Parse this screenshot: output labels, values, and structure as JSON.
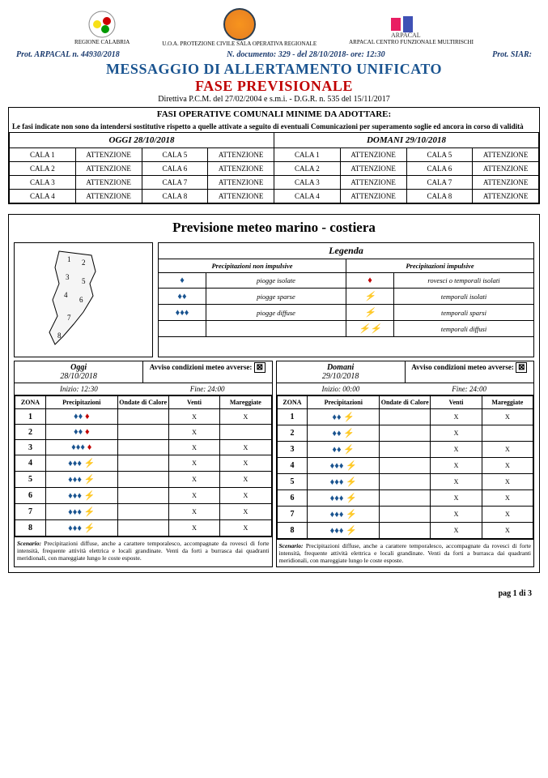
{
  "header": {
    "logos": [
      {
        "name": "REGIONE CALABRIA"
      },
      {
        "name": "U.O.A. PROTEZIONE CIVILE SALA OPERATIVA REGIONALE"
      },
      {
        "name": "ARPACAL CENTRO FUNZIONALE MULTIRISCHI"
      }
    ],
    "prot_left": "Prot. ARPACAL n. 44930/2018",
    "prot_center": "N. documento: 329 - del 28/10/2018- ore: 12:30",
    "prot_right": "Prot. SIAR:",
    "title1": "MESSAGGIO DI ALLERTAMENTO UNIFICATO",
    "title2": "FASE PREVISIONALE",
    "subtitle": "Direttiva P.C.M. del 27/02/2004 e s.m.i. - D.G.R. n. 535 del 15/11/2017"
  },
  "fasi": {
    "header": "FASI OPERATIVE COMUNALI MINIME DA ADOTTARE:",
    "note": "Le fasi indicate non sono da intendersi sostitutive rispetto a quelle attivate a seguito di eventuali Comunicazioni per superamento soglie ed ancora in corso di validità",
    "oggi_label": "OGGI 28/10/2018",
    "domani_label": "DOMANI 29/10/2018",
    "rows": [
      [
        {
          "z": "CALA 1",
          "s": "ATTENZIONE"
        },
        {
          "z": "CALA 5",
          "s": "ATTENZIONE"
        },
        {
          "z": "CALA 1",
          "s": "ATTENZIONE"
        },
        {
          "z": "CALA 5",
          "s": "ATTENZIONE"
        }
      ],
      [
        {
          "z": "CALA 2",
          "s": "ATTENZIONE"
        },
        {
          "z": "CALA 6",
          "s": "ATTENZIONE"
        },
        {
          "z": "CALA 2",
          "s": "ATTENZIONE"
        },
        {
          "z": "CALA 6",
          "s": "ATTENZIONE"
        }
      ],
      [
        {
          "z": "CALA 3",
          "s": "ATTENZIONE"
        },
        {
          "z": "CALA 7",
          "s": "ATTENZIONE"
        },
        {
          "z": "CALA 3",
          "s": "ATTENZIONE"
        },
        {
          "z": "CALA 7",
          "s": "ATTENZIONE"
        }
      ],
      [
        {
          "z": "CALA 4",
          "s": "ATTENZIONE"
        },
        {
          "z": "CALA 8",
          "s": "ATTENZIONE"
        },
        {
          "z": "CALA 4",
          "s": "ATTENZIONE"
        },
        {
          "z": "CALA 8",
          "s": "ATTENZIONE"
        }
      ]
    ]
  },
  "prev": {
    "title": "Previsione meteo marino - costiera",
    "legend": {
      "title": "Legenda",
      "non_imp": "Precipitazioni non impulsive",
      "imp": "Precipitazioni impulsive",
      "rows": [
        {
          "ic1": "💧",
          "tx1": "piogge isolate",
          "ic2": "🔸",
          "tx2": "rovesci o temporali isolati"
        },
        {
          "ic1": "💧💧",
          "tx1": "piogge sparse",
          "ic2": "⚡",
          "tx2": "temporali isolati"
        },
        {
          "ic1": "💧💧💧",
          "tx1": "piogge diffuse",
          "ic2": "⚡",
          "tx2": "temporali sparsi"
        },
        {
          "ic1": "",
          "tx1": "",
          "ic2": "⚡⚡",
          "tx2": "temporali diffusi"
        }
      ]
    },
    "cols": [
      {
        "day": "Oggi",
        "date": "28/10/2018",
        "avviso": "Avviso condizioni meteo avverse:",
        "inizio": "Inizio: 12:30",
        "fine": "Fine: 24:00",
        "zones": [
          {
            "z": "1",
            "p": "💧💧 🔸",
            "oc": "",
            "v": "X",
            "m": "X"
          },
          {
            "z": "2",
            "p": "💧💧 🔸",
            "oc": "",
            "v": "X",
            "m": ""
          },
          {
            "z": "3",
            "p": "💧💧💧 🔸",
            "oc": "",
            "v": "X",
            "m": "X"
          },
          {
            "z": "4",
            "p": "💧💧💧 ⚡",
            "oc": "",
            "v": "X",
            "m": "X"
          },
          {
            "z": "5",
            "p": "💧💧💧 ⚡",
            "oc": "",
            "v": "X",
            "m": "X"
          },
          {
            "z": "6",
            "p": "💧💧💧 ⚡",
            "oc": "",
            "v": "X",
            "m": "X"
          },
          {
            "z": "7",
            "p": "💧💧💧 ⚡",
            "oc": "",
            "v": "X",
            "m": "X"
          },
          {
            "z": "8",
            "p": "💧💧💧 ⚡",
            "oc": "",
            "v": "X",
            "m": "X"
          }
        ],
        "scenario": "Precipitazioni diffuse, anche a carattere temporalesco, accompagnate da rovesci di forte intensità, frequente attività elettrica e locali grandinate. Venti da forti a burrasca dai quadranti meridionali, con mareggiate lungo le coste esposte."
      },
      {
        "day": "Domani",
        "date": "29/10/2018",
        "avviso": "Avviso condizioni meteo avverse:",
        "inizio": "Inizio: 00:00",
        "fine": "Fine: 24:00",
        "zones": [
          {
            "z": "1",
            "p": "💧💧 ⚡",
            "oc": "",
            "v": "X",
            "m": "X"
          },
          {
            "z": "2",
            "p": "💧💧 ⚡",
            "oc": "",
            "v": "X",
            "m": ""
          },
          {
            "z": "3",
            "p": "💧💧 ⚡",
            "oc": "",
            "v": "X",
            "m": "X"
          },
          {
            "z": "4",
            "p": "💧💧💧 ⚡",
            "oc": "",
            "v": "X",
            "m": "X"
          },
          {
            "z": "5",
            "p": "💧💧💧 ⚡",
            "oc": "",
            "v": "X",
            "m": "X"
          },
          {
            "z": "6",
            "p": "💧💧💧 ⚡",
            "oc": "",
            "v": "X",
            "m": "X"
          },
          {
            "z": "7",
            "p": "💧💧💧 ⚡",
            "oc": "",
            "v": "X",
            "m": "X"
          },
          {
            "z": "8",
            "p": "💧💧💧 ⚡",
            "oc": "",
            "v": "X",
            "m": "X"
          }
        ],
        "scenario": "Precipitazioni diffuse, anche a carattere temporalesco, accompagnate da rovesci di forte intensità, frequente attività elettrica e locali grandinate. Venti da forti a burrasca dai quadranti meridionali, con mareggiate lungo le coste esposte."
      }
    ],
    "scenario_label": "Scenario:",
    "headers": {
      "zona": "ZONA",
      "prec": "Precipitazioni",
      "ondate": "Ondate di Calore",
      "venti": "Venti",
      "mare": "Mareggiate"
    }
  },
  "footer": "pag 1 di 3"
}
